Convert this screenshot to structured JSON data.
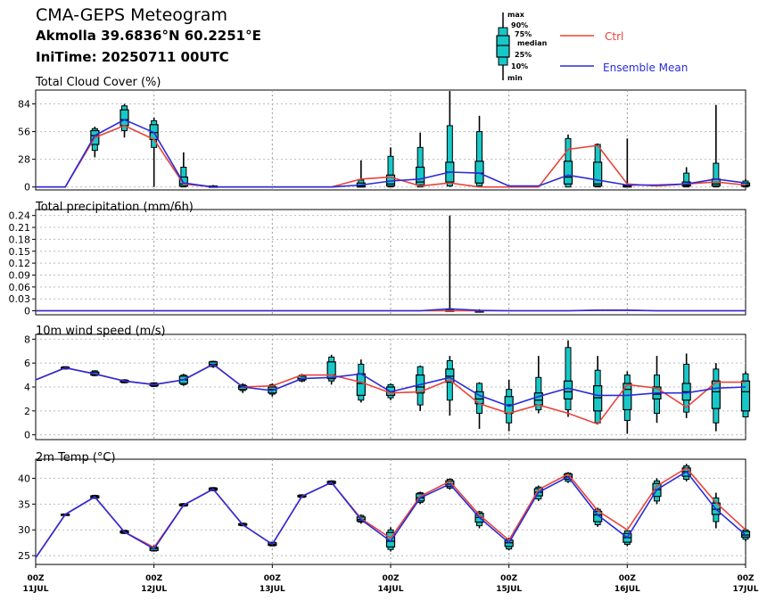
{
  "header": {
    "title": "CMA-GEPS Meteogram",
    "location": "Akmolla 39.6836°N 60.2251°E",
    "init_time": "IniTime: 20250711 00UTC"
  },
  "legend": {
    "box_labels": [
      "max",
      "90%",
      "75%",
      "median",
      "25%",
      "10%",
      "min"
    ],
    "ctrl_label": "Ctrl",
    "mean_label": "Ensemble Mean",
    "colors": {
      "ctrl": "#e8443a",
      "mean": "#2b2bd9",
      "box_fill": "#18c8c8"
    }
  },
  "x_axis": {
    "ticks": [
      {
        "t": 0,
        "top": "00Z",
        "bottom": "11JUL"
      },
      {
        "t": 24,
        "top": "00Z",
        "bottom": "12JUL"
      },
      {
        "t": 48,
        "top": "00Z",
        "bottom": "13JUL"
      },
      {
        "t": 72,
        "top": "00Z",
        "bottom": "14JUL"
      },
      {
        "t": 96,
        "top": "00Z",
        "bottom": "15JUL"
      },
      {
        "t": 120,
        "top": "00Z",
        "bottom": "16JUL"
      },
      {
        "t": 144,
        "top": "00Z",
        "bottom": "17JUL"
      }
    ]
  },
  "chart_data": [
    {
      "type": "box",
      "title": "Total Cloud Cover (%)",
      "ylim": [
        -3,
        98
      ],
      "yticks": [
        0,
        28,
        56,
        84
      ],
      "x_hours": [
        0,
        6,
        12,
        18,
        24,
        30,
        36,
        42,
        48,
        54,
        60,
        66,
        72,
        78,
        84,
        90,
        96,
        102,
        108,
        114,
        120,
        126,
        132,
        138,
        144
      ],
      "ctrl": [
        0,
        0,
        50,
        62,
        48,
        3,
        0,
        0,
        0,
        0,
        0,
        8,
        10,
        1,
        4,
        0,
        0,
        0,
        38,
        42,
        3,
        1,
        3,
        5,
        2
      ],
      "mean": [
        0,
        0,
        52,
        68,
        55,
        4,
        0,
        0,
        0,
        0,
        0,
        2,
        6,
        8,
        15,
        14,
        1,
        1,
        12,
        7,
        2,
        2,
        3,
        8,
        4
      ],
      "boxes": [
        {
          "x": 12,
          "min": 30,
          "p10": 37,
          "p25": 43,
          "med": 52,
          "p75": 57,
          "p90": 59,
          "max": 61
        },
        {
          "x": 18,
          "min": 50,
          "p10": 57,
          "p25": 62,
          "med": 68,
          "p75": 78,
          "p90": 82,
          "max": 84
        },
        {
          "x": 24,
          "min": 0,
          "p10": 40,
          "p25": 48,
          "med": 55,
          "p75": 63,
          "p90": 67,
          "max": 70
        },
        {
          "x": 30,
          "min": 0,
          "p10": 0,
          "p25": 1,
          "med": 3,
          "p75": 10,
          "p90": 20,
          "max": 35
        },
        {
          "x": 36,
          "min": 0,
          "p10": 0,
          "p25": 0,
          "med": 0,
          "p75": 1,
          "p90": 1,
          "max": 2
        },
        {
          "x": 66,
          "min": 0,
          "p10": 0,
          "p25": 0,
          "med": 1,
          "p75": 4,
          "p90": 7,
          "max": 27
        },
        {
          "x": 72,
          "min": 0,
          "p10": 0,
          "p25": 1,
          "med": 3,
          "p75": 12,
          "p90": 31,
          "max": 40
        },
        {
          "x": 78,
          "min": 0,
          "p10": 0,
          "p25": 2,
          "med": 5,
          "p75": 20,
          "p90": 40,
          "max": 55
        },
        {
          "x": 84,
          "min": 0,
          "p10": 1,
          "p25": 5,
          "med": 15,
          "p75": 25,
          "p90": 62,
          "max": 97
        },
        {
          "x": 90,
          "min": 0,
          "p10": 1,
          "p25": 4,
          "med": 14,
          "p75": 26,
          "p90": 56,
          "max": 72
        },
        {
          "x": 108,
          "min": 0,
          "p10": 0,
          "p25": 3,
          "med": 10,
          "p75": 26,
          "p90": 49,
          "max": 53
        },
        {
          "x": 114,
          "min": 0,
          "p10": 0,
          "p25": 1,
          "med": 3,
          "p75": 25,
          "p90": 43,
          "max": 44
        },
        {
          "x": 120,
          "min": 0,
          "p10": 0,
          "p25": 0,
          "med": 1,
          "p75": 2,
          "p90": 2,
          "max": 49
        },
        {
          "x": 132,
          "min": 0,
          "p10": 0,
          "p25": 1,
          "med": 2,
          "p75": 5,
          "p90": 14,
          "max": 20
        },
        {
          "x": 138,
          "min": 0,
          "p10": 0,
          "p25": 1,
          "med": 3,
          "p75": 8,
          "p90": 24,
          "max": 83
        },
        {
          "x": 144,
          "min": 0,
          "p10": 0,
          "p25": 1,
          "med": 2,
          "p75": 4,
          "p90": 6,
          "max": 8
        }
      ]
    },
    {
      "type": "box",
      "title": "Total precipitation (mm/6h)",
      "ylim": [
        -0.01,
        0.255
      ],
      "yticks": [
        0,
        0.03,
        0.06,
        0.09,
        0.12,
        0.15,
        0.18,
        0.21,
        0.24
      ],
      "x_hours": [
        0,
        6,
        12,
        18,
        24,
        30,
        36,
        42,
        48,
        54,
        60,
        66,
        72,
        78,
        84,
        90,
        96,
        102,
        108,
        114,
        120,
        126,
        132,
        138,
        144
      ],
      "ctrl": [
        0,
        0,
        0,
        0,
        0,
        0,
        0,
        0,
        0,
        0,
        0,
        0,
        0,
        0,
        0,
        0,
        0,
        0,
        0,
        0.002,
        0.002,
        0,
        0,
        0,
        0
      ],
      "mean": [
        0,
        0,
        0,
        0,
        0,
        0,
        0,
        0,
        0,
        0,
        0,
        0,
        0,
        0,
        0.005,
        0.001,
        0,
        0,
        0,
        0.001,
        0.001,
        0,
        0,
        0,
        0
      ],
      "boxes": [
        {
          "x": 84,
          "min": 0,
          "p10": 0,
          "p25": 0,
          "med": 0,
          "p75": 0.002,
          "p90": 0.004,
          "max": 0.24
        },
        {
          "x": 90,
          "min": 0,
          "p10": 0,
          "p25": 0,
          "med": 0,
          "p75": 0,
          "p90": 0.001,
          "max": 0.004
        }
      ]
    },
    {
      "type": "box",
      "title": "10m wind speed (m/s)",
      "ylim": [
        -0.4,
        8.4
      ],
      "yticks": [
        0,
        2,
        4,
        6,
        8
      ],
      "x_hours": [
        0,
        6,
        12,
        18,
        24,
        30,
        36,
        42,
        48,
        54,
        60,
        66,
        72,
        78,
        84,
        90,
        96,
        102,
        108,
        114,
        120,
        126,
        132,
        138,
        144
      ],
      "ctrl": [
        4.6,
        5.6,
        5.1,
        4.5,
        4.2,
        4.6,
        5.9,
        4.0,
        4.1,
        5.0,
        5.0,
        4.4,
        3.5,
        3.6,
        4.6,
        2.6,
        1.8,
        2.5,
        1.8,
        0.9,
        4.2,
        3.9,
        2.3,
        4.4,
        4.4
      ],
      "mean": [
        4.6,
        5.6,
        5.1,
        4.5,
        4.2,
        4.6,
        5.9,
        4.0,
        3.7,
        4.7,
        4.8,
        5.1,
        3.6,
        4.2,
        4.8,
        3.3,
        2.4,
        3.2,
        3.9,
        3.3,
        3.3,
        3.5,
        3.5,
        3.9,
        4.0
      ],
      "boxes": [
        {
          "x": 6,
          "min": 5.5,
          "p10": 5.5,
          "p25": 5.55,
          "med": 5.6,
          "p75": 5.65,
          "p90": 5.7,
          "max": 5.7
        },
        {
          "x": 12,
          "min": 4.9,
          "p10": 4.95,
          "p25": 5.0,
          "med": 5.1,
          "p75": 5.25,
          "p90": 5.35,
          "max": 5.4
        },
        {
          "x": 18,
          "min": 4.3,
          "p10": 4.35,
          "p25": 4.4,
          "med": 4.5,
          "p75": 4.55,
          "p90": 4.6,
          "max": 4.65
        },
        {
          "x": 24,
          "min": 4.0,
          "p10": 4.05,
          "p25": 4.1,
          "med": 4.2,
          "p75": 4.3,
          "p90": 4.35,
          "max": 4.4
        },
        {
          "x": 30,
          "min": 4.1,
          "p10": 4.2,
          "p25": 4.3,
          "med": 4.6,
          "p75": 4.9,
          "p90": 5.0,
          "max": 5.1
        },
        {
          "x": 36,
          "min": 5.6,
          "p10": 5.7,
          "p25": 5.8,
          "med": 5.9,
          "p75": 6.1,
          "p90": 6.15,
          "max": 6.2
        },
        {
          "x": 42,
          "min": 3.5,
          "p10": 3.7,
          "p25": 3.8,
          "med": 4.0,
          "p75": 4.1,
          "p90": 4.2,
          "max": 4.3
        },
        {
          "x": 48,
          "min": 3.2,
          "p10": 3.4,
          "p25": 3.5,
          "med": 3.8,
          "p75": 4.0,
          "p90": 4.2,
          "max": 4.3
        },
        {
          "x": 54,
          "min": 4.4,
          "p10": 4.5,
          "p25": 4.6,
          "med": 4.7,
          "p75": 4.9,
          "p90": 5.0,
          "max": 5.1
        },
        {
          "x": 60,
          "min": 4.2,
          "p10": 4.5,
          "p25": 4.7,
          "med": 5.0,
          "p75": 6.1,
          "p90": 6.5,
          "max": 6.7
        },
        {
          "x": 66,
          "min": 2.7,
          "p10": 2.9,
          "p25": 3.3,
          "med": 4.3,
          "p75": 5.1,
          "p90": 5.9,
          "max": 6.3
        },
        {
          "x": 72,
          "min": 2.9,
          "p10": 3.1,
          "p25": 3.3,
          "med": 3.6,
          "p75": 4.0,
          "p90": 4.2,
          "max": 4.3
        },
        {
          "x": 78,
          "min": 2.0,
          "p10": 2.5,
          "p25": 3.5,
          "med": 4.0,
          "p75": 5.0,
          "p90": 5.7,
          "max": 5.8
        },
        {
          "x": 84,
          "min": 1.6,
          "p10": 2.9,
          "p25": 4.4,
          "med": 4.9,
          "p75": 5.5,
          "p90": 6.2,
          "max": 6.6
        },
        {
          "x": 90,
          "min": 0.5,
          "p10": 1.8,
          "p25": 2.6,
          "med": 3.0,
          "p75": 3.6,
          "p90": 4.3,
          "max": 4.4
        },
        {
          "x": 96,
          "min": 0.3,
          "p10": 1.0,
          "p25": 1.8,
          "med": 2.5,
          "p75": 3.2,
          "p90": 3.8,
          "max": 4.6
        },
        {
          "x": 102,
          "min": 1.8,
          "p10": 2.1,
          "p25": 2.5,
          "med": 2.9,
          "p75": 3.5,
          "p90": 4.8,
          "max": 6.6
        },
        {
          "x": 108,
          "min": 1.5,
          "p10": 2.1,
          "p25": 3.0,
          "med": 3.6,
          "p75": 4.5,
          "p90": 7.3,
          "max": 7.9
        },
        {
          "x": 114,
          "min": 0.9,
          "p10": 1.0,
          "p25": 2.0,
          "med": 3.1,
          "p75": 4.1,
          "p90": 5.4,
          "max": 6.6
        },
        {
          "x": 120,
          "min": 0.1,
          "p10": 1.2,
          "p25": 2.1,
          "med": 3.8,
          "p75": 4.3,
          "p90": 5.0,
          "max": 5.3
        },
        {
          "x": 126,
          "min": 1.0,
          "p10": 1.8,
          "p25": 3.0,
          "med": 3.4,
          "p75": 4.0,
          "p90": 5.0,
          "max": 6.6
        },
        {
          "x": 132,
          "min": 1.4,
          "p10": 1.9,
          "p25": 2.9,
          "med": 3.6,
          "p75": 4.3,
          "p90": 5.9,
          "max": 6.8
        },
        {
          "x": 138,
          "min": 0.3,
          "p10": 1.0,
          "p25": 2.2,
          "med": 3.6,
          "p75": 4.5,
          "p90": 5.5,
          "max": 6.0
        },
        {
          "x": 144,
          "min": 1.5,
          "p10": 1.5,
          "p25": 2.0,
          "med": 3.6,
          "p75": 4.5,
          "p90": 5.1,
          "max": 5.3
        }
      ]
    },
    {
      "type": "box",
      "title": "2m Temp (°C)",
      "ylim": [
        23.3,
        43.7
      ],
      "yticks": [
        25,
        30,
        35,
        40
      ],
      "x_hours": [
        0,
        6,
        12,
        18,
        24,
        30,
        36,
        42,
        48,
        54,
        60,
        66,
        72,
        78,
        84,
        90,
        96,
        102,
        108,
        114,
        120,
        126,
        132,
        138,
        144
      ],
      "ctrl": [
        24.6,
        33.0,
        36.4,
        29.6,
        26.6,
        34.8,
        37.9,
        31.0,
        27.2,
        36.5,
        39.2,
        32.2,
        28.4,
        36.5,
        39.4,
        32.9,
        28.0,
        37.8,
        40.8,
        33.7,
        30.0,
        38.5,
        42.0,
        35.3,
        30.0
      ],
      "mean": [
        24.6,
        33.0,
        36.4,
        29.6,
        26.3,
        34.8,
        37.9,
        31.0,
        27.2,
        36.5,
        39.2,
        32.0,
        27.8,
        36.2,
        38.9,
        32.4,
        27.5,
        37.3,
        40.3,
        32.9,
        28.5,
        37.8,
        41.3,
        34.0,
        29.0
      ],
      "boxes": [
        {
          "x": 6,
          "min": 32.9,
          "p10": 32.95,
          "p25": 33.0,
          "med": 33.0,
          "p75": 33.05,
          "p90": 33.1,
          "max": 33.1
        },
        {
          "x": 12,
          "min": 36.0,
          "p10": 36.1,
          "p25": 36.2,
          "med": 36.4,
          "p75": 36.6,
          "p90": 36.7,
          "max": 36.8
        },
        {
          "x": 18,
          "min": 29.2,
          "p10": 29.3,
          "p25": 29.4,
          "med": 29.6,
          "p75": 29.8,
          "p90": 29.9,
          "max": 30.0
        },
        {
          "x": 24,
          "min": 25.8,
          "p10": 25.9,
          "p25": 26.0,
          "med": 26.4,
          "p75": 26.6,
          "p90": 26.8,
          "max": 27.0
        },
        {
          "x": 30,
          "min": 34.5,
          "p10": 34.6,
          "p25": 34.7,
          "med": 34.8,
          "p75": 35.0,
          "p90": 35.1,
          "max": 35.2
        },
        {
          "x": 36,
          "min": 37.5,
          "p10": 37.6,
          "p25": 37.7,
          "med": 37.9,
          "p75": 38.1,
          "p90": 38.2,
          "max": 38.3
        },
        {
          "x": 42,
          "min": 30.7,
          "p10": 30.8,
          "p25": 30.9,
          "med": 31.0,
          "p75": 31.2,
          "p90": 31.3,
          "max": 31.4
        },
        {
          "x": 48,
          "min": 26.8,
          "p10": 26.9,
          "p25": 27.0,
          "med": 27.2,
          "p75": 27.5,
          "p90": 27.6,
          "max": 27.7
        },
        {
          "x": 54,
          "min": 36.2,
          "p10": 36.3,
          "p25": 36.4,
          "med": 36.5,
          "p75": 36.7,
          "p90": 36.8,
          "max": 36.9
        },
        {
          "x": 60,
          "min": 38.7,
          "p10": 38.8,
          "p25": 39.0,
          "med": 39.2,
          "p75": 39.4,
          "p90": 39.5,
          "max": 39.6
        },
        {
          "x": 66,
          "min": 31.2,
          "p10": 31.5,
          "p25": 31.7,
          "med": 32.0,
          "p75": 32.5,
          "p90": 32.8,
          "max": 33.0
        },
        {
          "x": 72,
          "min": 25.8,
          "p10": 26.2,
          "p25": 26.7,
          "med": 27.8,
          "p75": 29.5,
          "p90": 30.0,
          "max": 30.5
        },
        {
          "x": 78,
          "min": 35.0,
          "p10": 35.3,
          "p25": 35.6,
          "med": 36.2,
          "p75": 37.0,
          "p90": 37.2,
          "max": 37.4
        },
        {
          "x": 84,
          "min": 37.8,
          "p10": 38.1,
          "p25": 38.4,
          "med": 38.9,
          "p75": 39.5,
          "p90": 39.8,
          "max": 40.0
        },
        {
          "x": 90,
          "min": 30.3,
          "p10": 30.8,
          "p25": 31.5,
          "med": 32.4,
          "p75": 33.2,
          "p90": 33.5,
          "max": 33.7
        },
        {
          "x": 96,
          "min": 26.0,
          "p10": 26.3,
          "p25": 26.8,
          "med": 27.5,
          "p75": 28.0,
          "p90": 28.3,
          "max": 28.5
        },
        {
          "x": 102,
          "min": 35.6,
          "p10": 36.0,
          "p25": 36.6,
          "med": 37.3,
          "p75": 38.0,
          "p90": 38.3,
          "max": 38.6
        },
        {
          "x": 108,
          "min": 39.1,
          "p10": 39.4,
          "p25": 39.8,
          "med": 40.3,
          "p75": 40.8,
          "p90": 41.0,
          "max": 41.2
        },
        {
          "x": 114,
          "min": 30.6,
          "p10": 31.0,
          "p25": 31.6,
          "med": 32.9,
          "p75": 33.6,
          "p90": 34.0,
          "max": 34.3
        },
        {
          "x": 120,
          "min": 26.8,
          "p10": 27.2,
          "p25": 27.6,
          "med": 28.5,
          "p75": 29.3,
          "p90": 29.8,
          "max": 30.1
        },
        {
          "x": 126,
          "min": 35.0,
          "p10": 35.6,
          "p25": 36.5,
          "med": 37.8,
          "p75": 39.0,
          "p90": 39.5,
          "max": 40.0
        },
        {
          "x": 132,
          "min": 39.4,
          "p10": 39.8,
          "p25": 40.4,
          "med": 41.3,
          "p75": 42.0,
          "p90": 42.4,
          "max": 42.8
        },
        {
          "x": 138,
          "min": 30.3,
          "p10": 31.6,
          "p25": 33.0,
          "med": 34.0,
          "p75": 35.2,
          "p90": 36.2,
          "max": 37.2
        },
        {
          "x": 144,
          "min": 27.8,
          "p10": 28.2,
          "p25": 28.6,
          "med": 29.0,
          "p75": 29.7,
          "p90": 30.0,
          "max": 30.3
        }
      ]
    }
  ]
}
